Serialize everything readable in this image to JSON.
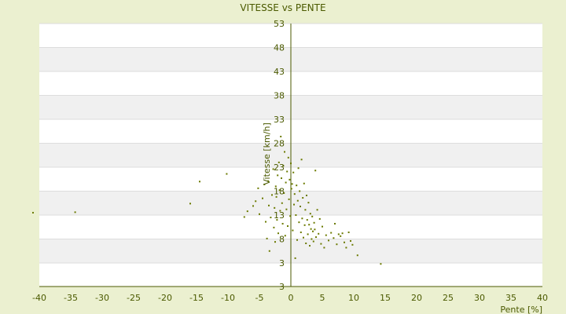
{
  "chart_data": {
    "type": "scatter",
    "title": "VITESSE vs PENTE",
    "xlabel": "Pente [%]",
    "ylabel": "Vitesse [km/h]",
    "xlim": [
      -40,
      40
    ],
    "ylim": [
      -2,
      53
    ],
    "x_ticks": [
      -40,
      -35,
      -30,
      -25,
      -20,
      -15,
      -10,
      -5,
      0,
      5,
      10,
      15,
      20,
      25,
      30,
      35,
      40
    ],
    "y_ticks": [
      53,
      48,
      43,
      38,
      33,
      28,
      23,
      18,
      13,
      8,
      3
    ],
    "y_axis_bottom_label": "3",
    "grid": true,
    "colors": {
      "background": "#ebf0d0",
      "plot_band_light": "#ffffff",
      "plot_band_dark": "#f0f0f0",
      "marker": "#6b7a00",
      "axis": "#4b5a00",
      "text": "#4b5a00"
    },
    "points": [
      [
        -41.0,
        13.5
      ],
      [
        -34.3,
        13.6
      ],
      [
        -16.0,
        15.4
      ],
      [
        -14.5,
        20.0
      ],
      [
        -10.2,
        21.6
      ],
      [
        -7.4,
        12.6
      ],
      [
        -6.9,
        13.8
      ],
      [
        -6.0,
        14.9
      ],
      [
        -5.6,
        15.9
      ],
      [
        -5.2,
        18.6
      ],
      [
        -5.0,
        13.2
      ],
      [
        -4.5,
        16.5
      ],
      [
        -4.2,
        19.4
      ],
      [
        -4.0,
        11.6
      ],
      [
        -3.8,
        8.1
      ],
      [
        -3.6,
        20.1
      ],
      [
        -3.5,
        15.0
      ],
      [
        -3.4,
        5.5
      ],
      [
        -3.2,
        12.5
      ],
      [
        -3.0,
        17.2
      ],
      [
        -2.8,
        22.6
      ],
      [
        -2.7,
        10.4
      ],
      [
        -2.6,
        14.5
      ],
      [
        -2.5,
        7.4
      ],
      [
        -2.4,
        19.0
      ],
      [
        -2.3,
        16.8
      ],
      [
        -2.2,
        12.0
      ],
      [
        -2.1,
        21.3
      ],
      [
        -2.0,
        9.2
      ],
      [
        -1.9,
        24.0
      ],
      [
        -1.8,
        18.2
      ],
      [
        -1.7,
        13.9
      ],
      [
        -1.6,
        29.4
      ],
      [
        -1.5,
        20.7
      ],
      [
        -1.4,
        15.5
      ],
      [
        -1.3,
        11.2
      ],
      [
        -1.2,
        23.3
      ],
      [
        -1.1,
        17.6
      ],
      [
        -1.0,
        26.2
      ],
      [
        -0.9,
        8.7
      ],
      [
        -0.8,
        19.8
      ],
      [
        -0.7,
        14.2
      ],
      [
        -0.6,
        22.1
      ],
      [
        -0.5,
        10.7
      ],
      [
        -0.4,
        25.0
      ],
      [
        -0.3,
        16.3
      ],
      [
        -0.2,
        20.4
      ],
      [
        -0.1,
        12.8
      ],
      [
        0.0,
        23.8
      ],
      [
        0.1,
        18.5
      ],
      [
        0.2,
        19.5
      ],
      [
        0.3,
        9.8
      ],
      [
        0.4,
        21.9
      ],
      [
        0.5,
        15.2
      ],
      [
        0.6,
        17.4
      ],
      [
        0.7,
        4.0
      ],
      [
        0.8,
        13.0
      ],
      [
        0.9,
        19.2
      ],
      [
        1.0,
        7.8
      ],
      [
        1.1,
        16.0
      ],
      [
        1.2,
        22.8
      ],
      [
        1.3,
        11.5
      ],
      [
        1.4,
        18.0
      ],
      [
        1.5,
        14.8
      ],
      [
        1.6,
        9.4
      ],
      [
        1.7,
        24.6
      ],
      [
        1.8,
        12.3
      ],
      [
        1.9,
        16.6
      ],
      [
        2.0,
        8.3
      ],
      [
        2.1,
        19.6
      ],
      [
        2.2,
        10.9
      ],
      [
        2.3,
        14.1
      ],
      [
        2.4,
        7.1
      ],
      [
        2.5,
        17.1
      ],
      [
        2.6,
        12.0
      ],
      [
        2.7,
        9.0
      ],
      [
        2.8,
        15.6
      ],
      [
        2.9,
        11.0
      ],
      [
        3.0,
        6.6
      ],
      [
        3.1,
        13.3
      ],
      [
        3.2,
        10.1
      ],
      [
        3.3,
        8.0
      ],
      [
        3.4,
        12.7
      ],
      [
        3.5,
        9.6
      ],
      [
        3.6,
        7.5
      ],
      [
        3.7,
        11.4
      ],
      [
        3.8,
        10.0
      ],
      [
        3.9,
        22.3
      ],
      [
        4.0,
        8.4
      ],
      [
        4.2,
        14.1
      ],
      [
        4.4,
        9.1
      ],
      [
        4.6,
        12.2
      ],
      [
        4.8,
        7.0
      ],
      [
        5.0,
        10.6
      ],
      [
        5.3,
        6.2
      ],
      [
        5.6,
        8.8
      ],
      [
        6.0,
        7.7
      ],
      [
        6.4,
        9.3
      ],
      [
        6.8,
        8.2
      ],
      [
        7.0,
        11.2
      ],
      [
        7.3,
        6.9
      ],
      [
        7.6,
        9.0
      ],
      [
        7.9,
        8.6
      ],
      [
        8.2,
        9.2
      ],
      [
        8.5,
        7.3
      ],
      [
        8.8,
        6.2
      ],
      [
        9.2,
        9.4
      ],
      [
        9.5,
        7.6
      ],
      [
        9.8,
        6.8
      ],
      [
        10.6,
        4.6
      ],
      [
        14.3,
        2.8
      ]
    ]
  }
}
